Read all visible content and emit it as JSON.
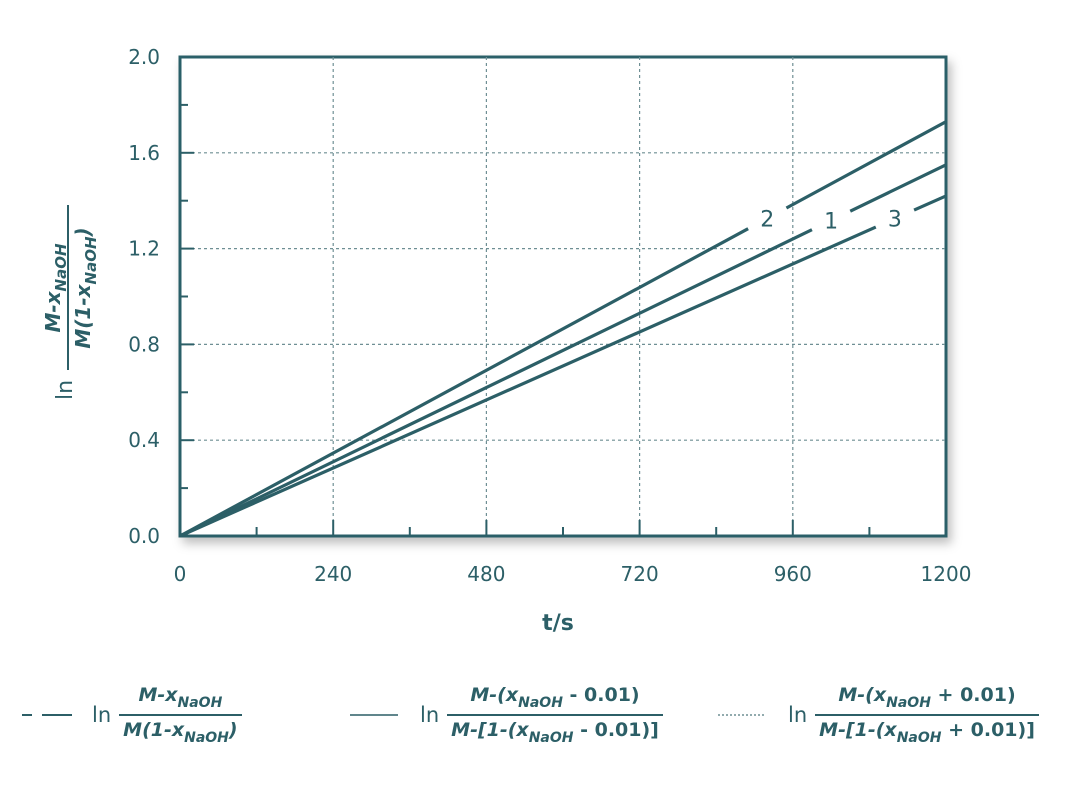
{
  "chart_data": {
    "type": "line",
    "x": [
      0,
      1200
    ],
    "series": [
      {
        "name": "1",
        "values": [
          0,
          1.55
        ]
      },
      {
        "name": "2",
        "values": [
          0,
          1.73
        ]
      },
      {
        "name": "3",
        "values": [
          0,
          1.42
        ]
      }
    ],
    "xlabel": "t/s",
    "ylabel": {
      "prefix": "ln",
      "num": "M-x",
      "num_sub": "NaOH",
      "den": "M(1-x",
      "den_sub": "NaOH",
      "den_close": ")"
    },
    "xlim": [
      0,
      1200
    ],
    "ylim": [
      0,
      2.0
    ],
    "xticks": [
      "0",
      "240",
      "480",
      "720",
      "960",
      "1200"
    ],
    "yticks": [
      "0.0",
      "0.4",
      "0.8",
      "1.2",
      "1.6",
      "2.0"
    ],
    "grid": true,
    "legend_position": "bottom",
    "line_color": "#2c5f67"
  },
  "legend": [
    {
      "style": "dash",
      "ln": "ln",
      "num": "M-x",
      "num_sub": "NaOH",
      "num_tail": "",
      "den": "M(1-x",
      "den_sub": "NaOH",
      "den_tail": ")"
    },
    {
      "style": "solid",
      "ln": "ln",
      "num": "M-(x",
      "num_sub": "NaOH",
      "num_tail": " - 0.01)",
      "den": "M-[1-(x",
      "den_sub": "NaOH",
      "den_tail": " - 0.01)]"
    },
    {
      "style": "dotted",
      "ln": "ln",
      "num": "M-(x",
      "num_sub": "NaOH",
      "num_tail": " + 0.01)",
      "den": "M-[1-(x",
      "den_sub": "NaOH",
      "den_tail": " + 0.01)]"
    }
  ]
}
